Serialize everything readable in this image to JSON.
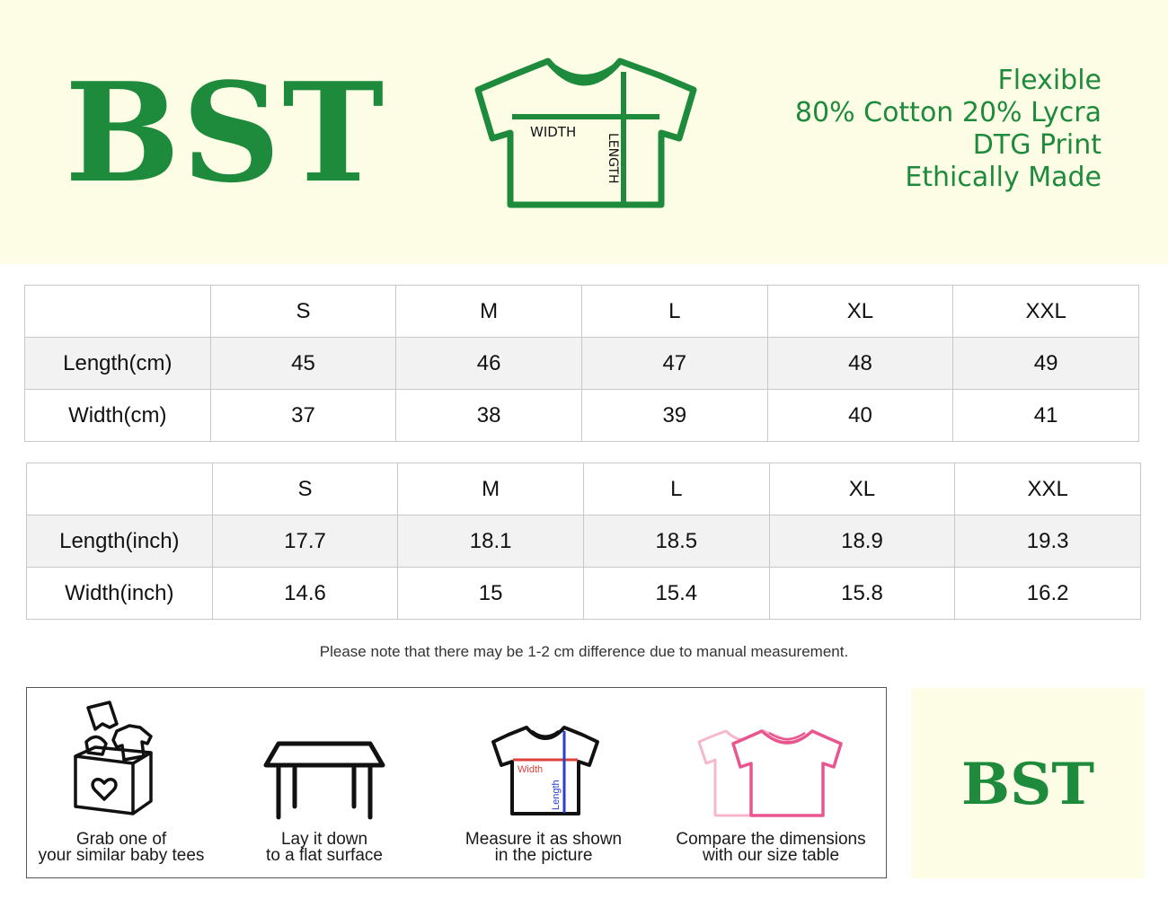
{
  "brand": "BST",
  "diagram": {
    "width_label": "WIDTH",
    "length_label": "LENGTH"
  },
  "features": [
    "Flexible",
    "80% Cotton 20% Lycra",
    "DTG Print",
    "Ethically Made"
  ],
  "table_cm": {
    "headers": [
      "",
      "S",
      "M",
      "L",
      "XL",
      "XXL"
    ],
    "rows": [
      {
        "label": "Length(cm)",
        "values": [
          "45",
          "46",
          "47",
          "48",
          "49"
        ]
      },
      {
        "label": "Width(cm)",
        "values": [
          "37",
          "38",
          "39",
          "40",
          "41"
        ]
      }
    ]
  },
  "table_inch": {
    "headers": [
      "",
      "S",
      "M",
      "L",
      "XL",
      "XXL"
    ],
    "rows": [
      {
        "label": "Length(inch)",
        "values": [
          "17.7",
          "18.1",
          "18.5",
          "18.9",
          "19.3"
        ]
      },
      {
        "label": "Width(inch)",
        "values": [
          "14.6",
          "15",
          "15.4",
          "15.8",
          "16.2"
        ]
      }
    ]
  },
  "note": "Please note that there may be 1-2 cm difference due to manual measurement.",
  "steps": [
    {
      "icon": "box-of-clothes-icon",
      "line1": "Grab one of",
      "line2": "your similar baby tees"
    },
    {
      "icon": "table-icon",
      "line1": "Lay it down",
      "line2": "to a flat surface"
    },
    {
      "icon": "measured-shirt-icon",
      "line1": "Measure it as shown",
      "line2": "in the picture",
      "width_label": "Width",
      "length_label": "Length"
    },
    {
      "icon": "compare-shirts-icon",
      "line1": "Compare the dimensions",
      "line2": "with our size table"
    }
  ],
  "logo_small": "BST",
  "colors": {
    "brand_green": "#1e8a3c",
    "header_bg": "#fdfde6",
    "row_gray": "#f2f2f2",
    "measure_red": "#e0413a",
    "measure_blue": "#2a3fd0",
    "shirt_pink": "#e8558f",
    "shirt_light_pink": "#f5b8cd"
  }
}
